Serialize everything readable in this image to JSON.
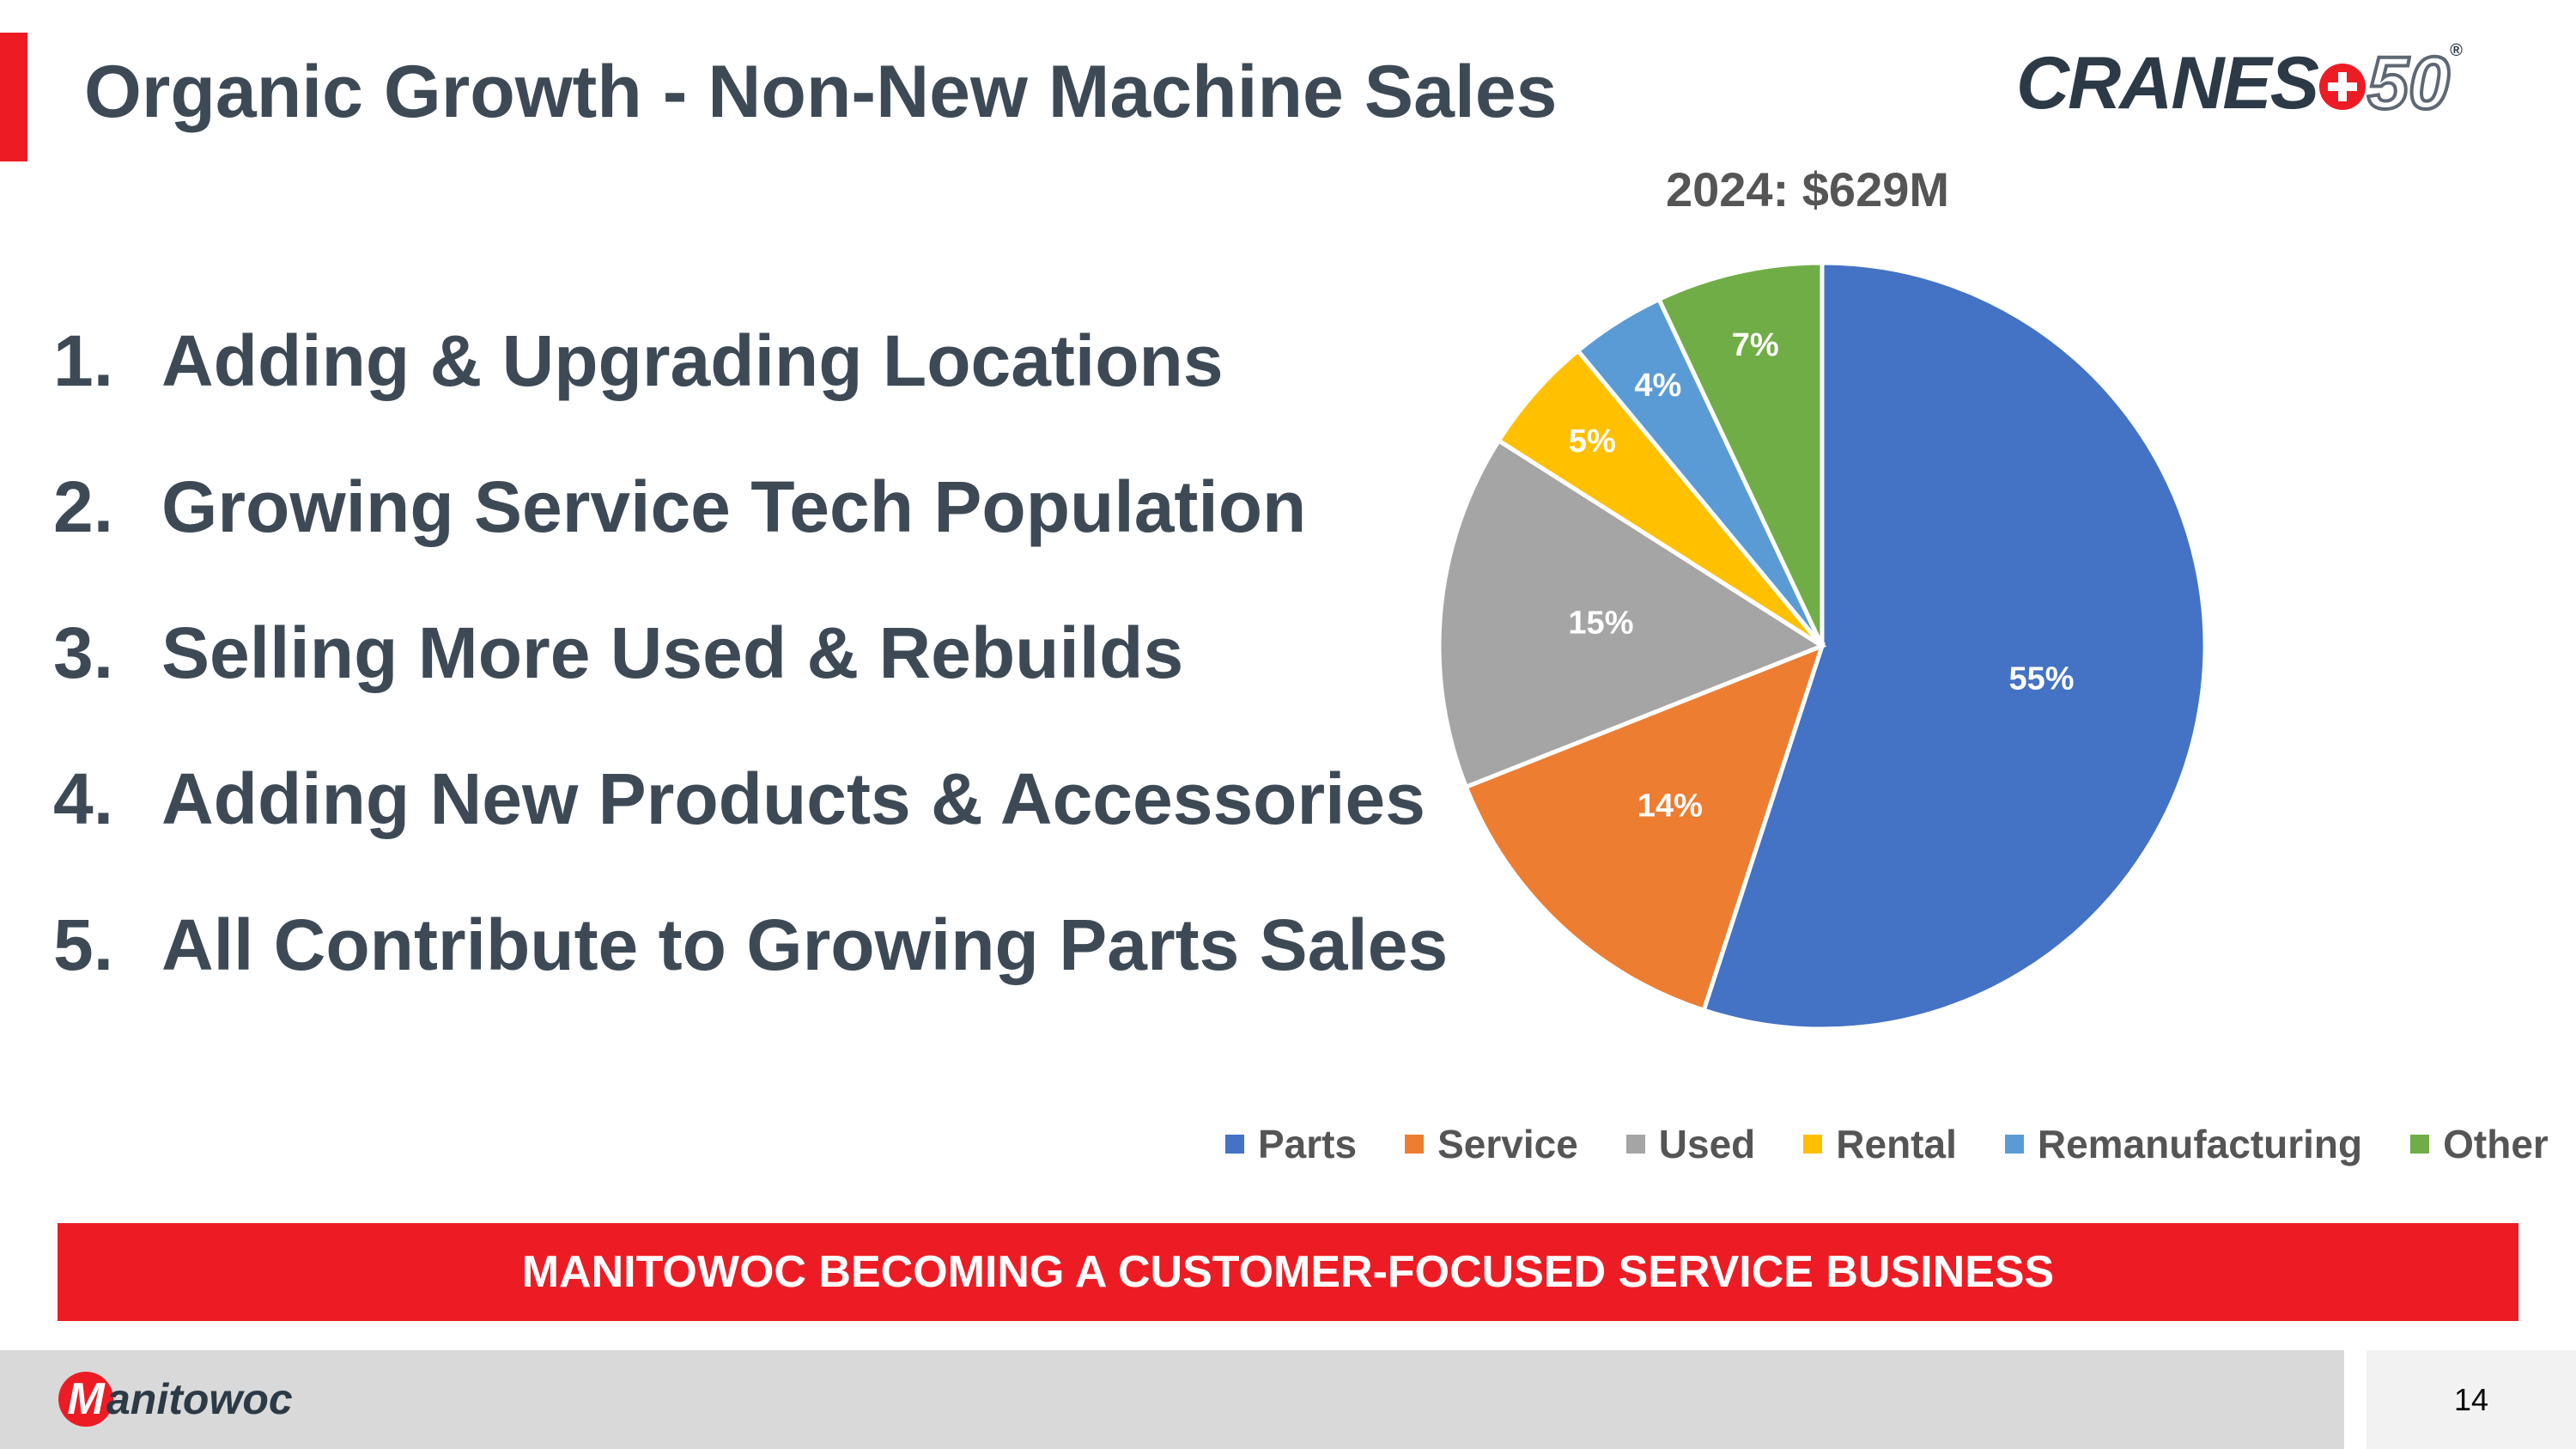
{
  "slide": {
    "title": "Organic Growth - Non-New Machine Sales",
    "page_number": "14",
    "banner": "MANITOWOC BECOMING A CUSTOMER-FOCUSED SERVICE BUSINESS"
  },
  "branding": {
    "cranes_logo_word": "CRANES",
    "cranes_logo_number": "50",
    "cranes_logo_reg": "®",
    "manitowoc_badge": "M",
    "manitowoc_word": "anitowoc"
  },
  "list": [
    {
      "num": "1.",
      "text": "Adding & Upgrading Locations"
    },
    {
      "num": "2.",
      "text": "Growing Service Tech Population"
    },
    {
      "num": "3.",
      "text": "Selling More Used & Rebuilds"
    },
    {
      "num": "4.",
      "text": "Adding New Products & Accessories"
    },
    {
      "num": "5.",
      "text": "All Contribute to Growing Parts Sales"
    }
  ],
  "chart_data": {
    "type": "pie",
    "title": "2024: $629M",
    "labels": [
      "Parts",
      "Service",
      "Used",
      "Rental",
      "Remanufacturing",
      "Other"
    ],
    "values": [
      55,
      14,
      15,
      5,
      4,
      7
    ],
    "data_labels": [
      "55%",
      "14%",
      "15%",
      "5%",
      "4%",
      "7%"
    ],
    "colors": [
      "#4472c4",
      "#ed7d31",
      "#a5a5a5",
      "#ffc000",
      "#5b9bd5",
      "#70ad47"
    ],
    "start": "12 o'clock, clockwise",
    "legend_position": "bottom"
  },
  "colors": {
    "brand_red": "#ed1c24",
    "title_text": "#3d4a56"
  }
}
